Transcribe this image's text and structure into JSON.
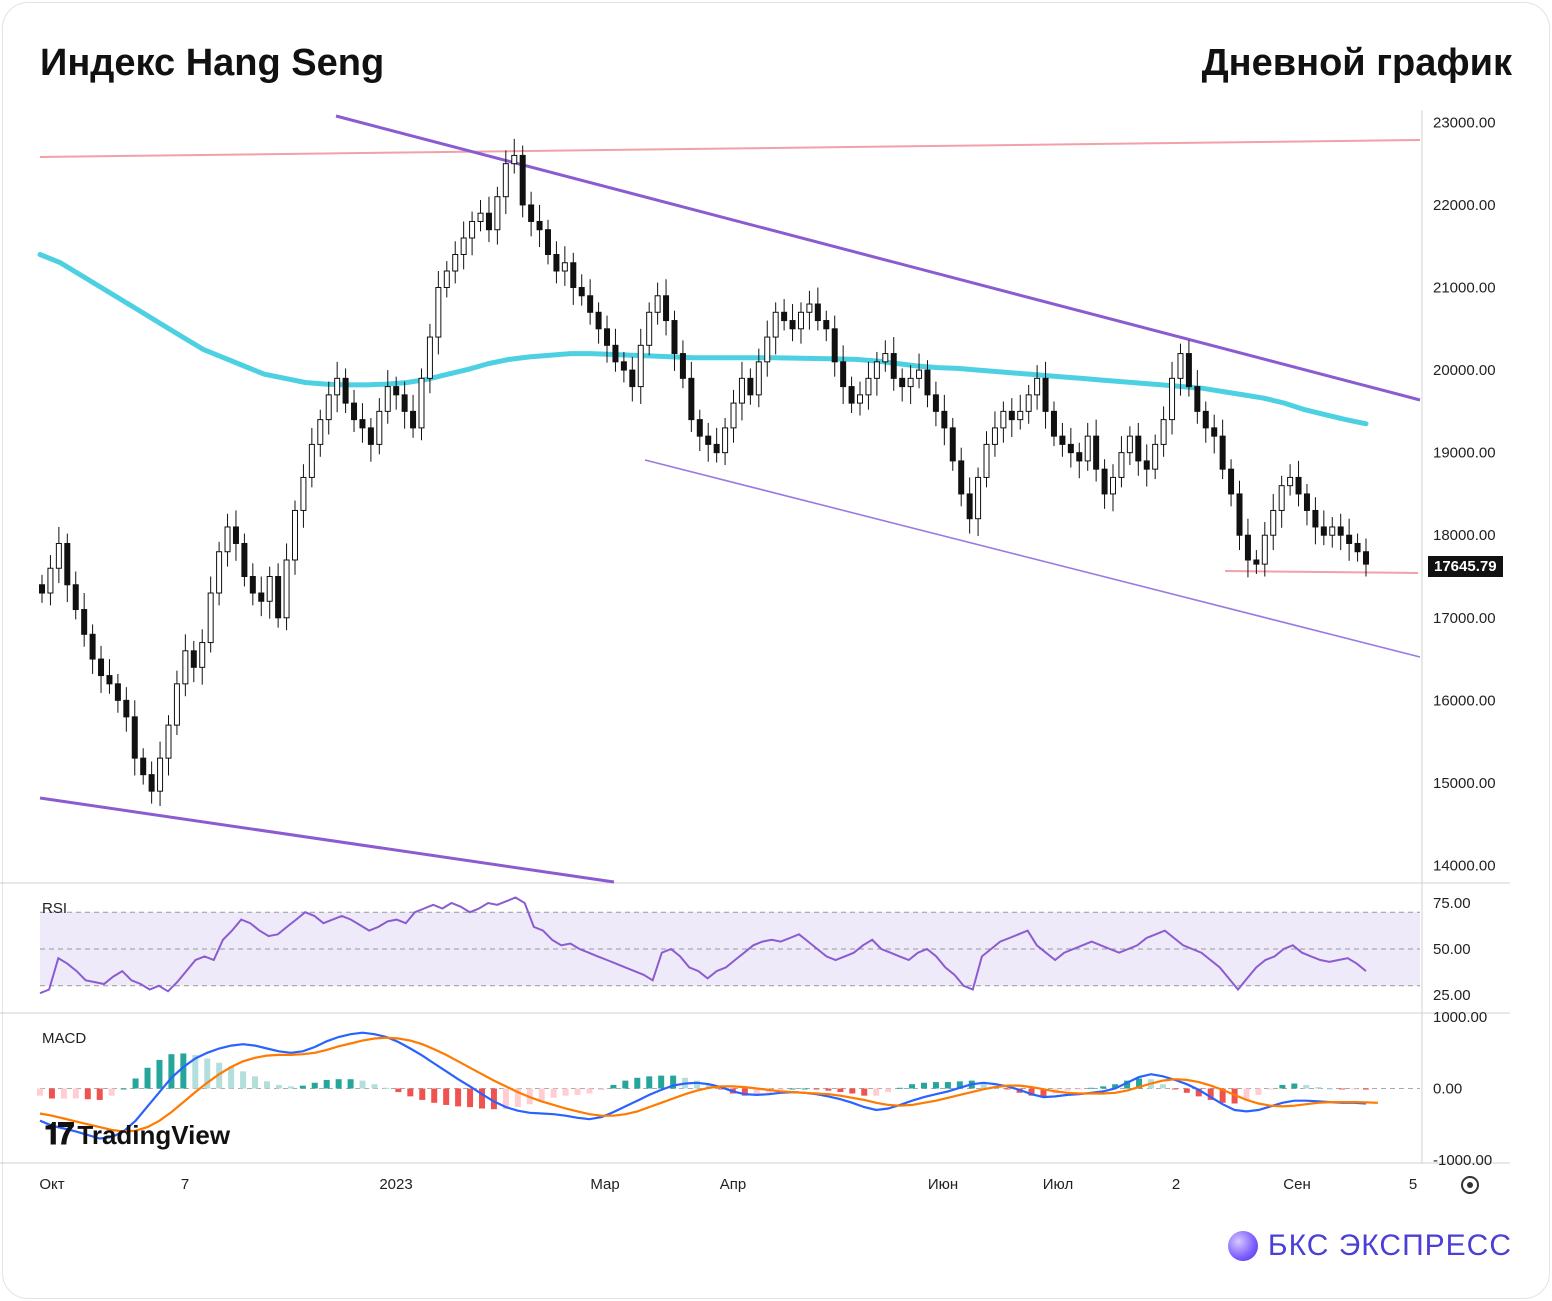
{
  "header": {
    "title": "Индекс Hang Seng",
    "timeframe": "Дневной график"
  },
  "chart_data": {
    "type": "candlestick",
    "title": "Индекс Hang Seng",
    "subtitle": "Дневной график",
    "last_price": "17645.79",
    "y_ticks": [
      "23000.00",
      "22000.00",
      "21000.00",
      "20000.00",
      "19000.00",
      "18000.00",
      "17000.00",
      "16000.00",
      "15000.00",
      "14000.00"
    ],
    "ylim": [
      13800,
      23150
    ],
    "x_ticks": [
      "Окт",
      "7",
      "2023",
      "Мар",
      "Апр",
      "Июн",
      "Июл",
      "2",
      "Сен",
      "5"
    ],
    "close_series": [
      17300,
      17600,
      17900,
      17400,
      17100,
      16800,
      16500,
      16300,
      16200,
      16000,
      15800,
      15300,
      15100,
      14900,
      15300,
      15700,
      16200,
      16600,
      16400,
      16700,
      17300,
      17800,
      18100,
      17900,
      17500,
      17300,
      17200,
      17500,
      17000,
      17700,
      18300,
      18700,
      19100,
      19400,
      19700,
      19900,
      19600,
      19400,
      19300,
      19100,
      19500,
      19800,
      19700,
      19500,
      19300,
      19900,
      20400,
      21000,
      21200,
      21400,
      21600,
      21800,
      21900,
      21700,
      22100,
      22500,
      22600,
      22000,
      21800,
      21700,
      21400,
      21200,
      21300,
      21000,
      20900,
      20700,
      20500,
      20300,
      20100,
      20000,
      19800,
      20300,
      20700,
      20900,
      20600,
      20200,
      19900,
      19400,
      19200,
      19100,
      19000,
      19300,
      19600,
      19900,
      19700,
      20100,
      20400,
      20700,
      20600,
      20500,
      20700,
      20800,
      20600,
      20500,
      20100,
      19800,
      19600,
      19700,
      19900,
      20100,
      20200,
      19900,
      19800,
      19900,
      20000,
      19700,
      19500,
      19300,
      18900,
      18500,
      18200,
      18700,
      19100,
      19300,
      19500,
      19400,
      19500,
      19700,
      19900,
      19500,
      19200,
      19100,
      19000,
      18900,
      19200,
      18800,
      18500,
      18700,
      19000,
      19200,
      18900,
      18800,
      19100,
      19400,
      19900,
      20200,
      19800,
      19500,
      19300,
      19200,
      18800,
      18500,
      18000,
      17700,
      17650,
      18000,
      18300,
      18600,
      18700,
      18500,
      18300,
      18100,
      18000,
      18100,
      18000,
      17900,
      17800,
      17650
    ],
    "ma200": [
      21400,
      21300,
      21150,
      21000,
      20850,
      20700,
      20550,
      20400,
      20250,
      20150,
      20050,
      19950,
      19900,
      19850,
      19830,
      19820,
      19820,
      19830,
      19850,
      19890,
      19950,
      20010,
      20080,
      20130,
      20160,
      20180,
      20200,
      20200,
      20190,
      20180,
      20170,
      20160,
      20150,
      20150,
      20150,
      20150,
      20150,
      20145,
      20140,
      20135,
      20130,
      20110,
      20080,
      20050,
      20030,
      20020,
      20000,
      19980,
      19960,
      19940,
      19920,
      19900,
      19880,
      19860,
      19840,
      19820,
      19800,
      19780,
      19740,
      19700,
      19660,
      19600,
      19520,
      19460,
      19400,
      19350
    ],
    "rsi": {
      "label": "RSI",
      "ticks": [
        "75.00",
        "50.00",
        "25.00"
      ],
      "band": [
        30,
        70
      ],
      "values": [
        26,
        28,
        45,
        42,
        38,
        33,
        32,
        31,
        35,
        38,
        33,
        31,
        28,
        30,
        27,
        32,
        38,
        44,
        46,
        44,
        55,
        60,
        66,
        64,
        60,
        57,
        58,
        62,
        66,
        70,
        68,
        64,
        66,
        68,
        66,
        63,
        60,
        62,
        65,
        66,
        64,
        70,
        72,
        74,
        72,
        75,
        73,
        70,
        72,
        75,
        74,
        76,
        78,
        75,
        62,
        60,
        55,
        52,
        53,
        50,
        48,
        46,
        44,
        42,
        40,
        38,
        36,
        33,
        48,
        50,
        46,
        40,
        38,
        34,
        38,
        40,
        44,
        48,
        52,
        54,
        55,
        54,
        56,
        58,
        54,
        50,
        46,
        44,
        46,
        48,
        52,
        55,
        50,
        48,
        46,
        44,
        48,
        50,
        46,
        40,
        36,
        30,
        28,
        46,
        50,
        54,
        56,
        58,
        60,
        52,
        48,
        44,
        48,
        50,
        52,
        54,
        52,
        50,
        48,
        50,
        52,
        56,
        58,
        60,
        56,
        52,
        50,
        48,
        44,
        40,
        34,
        28,
        34,
        40,
        44,
        46,
        50,
        52,
        48,
        46,
        44,
        43,
        44,
        45,
        42,
        38
      ]
    },
    "macd": {
      "label": "MACD",
      "ticks": [
        "1000.00",
        "0.00",
        "-1000.00"
      ],
      "macd_line": [
        -450,
        -520,
        -560,
        -600,
        -650,
        -700,
        -680,
        -600,
        -450,
        -250,
        -50,
        150,
        300,
        420,
        500,
        560,
        600,
        620,
        600,
        560,
        520,
        500,
        520,
        580,
        660,
        720,
        760,
        780,
        760,
        720,
        650,
        560,
        460,
        350,
        240,
        130,
        30,
        -80,
        -180,
        -260,
        -310,
        -340,
        -350,
        -360,
        -380,
        -410,
        -430,
        -400,
        -330,
        -250,
        -170,
        -90,
        -20,
        40,
        70,
        80,
        60,
        20,
        -40,
        -80,
        -90,
        -80,
        -60,
        -50,
        -60,
        -80,
        -110,
        -150,
        -200,
        -260,
        -300,
        -280,
        -230,
        -170,
        -120,
        -80,
        -40,
        10,
        60,
        80,
        60,
        30,
        -20,
        -80,
        -120,
        -110,
        -90,
        -80,
        -60,
        -40,
        0,
        80,
        160,
        200,
        170,
        120,
        60,
        -20,
        -120,
        -220,
        -300,
        -320,
        -300,
        -250,
        -200,
        -170,
        -170,
        -180,
        -190,
        -200,
        -200,
        -210
      ],
      "signal_line": [
        -350,
        -380,
        -420,
        -460,
        -500,
        -540,
        -580,
        -600,
        -590,
        -540,
        -450,
        -330,
        -190,
        -50,
        80,
        200,
        300,
        380,
        430,
        460,
        470,
        470,
        480,
        500,
        540,
        590,
        630,
        670,
        700,
        710,
        700,
        670,
        620,
        550,
        470,
        380,
        290,
        200,
        110,
        30,
        -50,
        -120,
        -180,
        -230,
        -280,
        -320,
        -360,
        -380,
        -380,
        -360,
        -320,
        -260,
        -200,
        -140,
        -80,
        -30,
        10,
        30,
        30,
        20,
        0,
        -20,
        -40,
        -50,
        -60,
        -70,
        -80,
        -100,
        -130,
        -160,
        -200,
        -230,
        -240,
        -230,
        -200,
        -170,
        -130,
        -90,
        -50,
        -10,
        20,
        40,
        40,
        20,
        -10,
        -40,
        -60,
        -70,
        -70,
        -70,
        -60,
        -30,
        20,
        70,
        110,
        130,
        120,
        90,
        40,
        -20,
        -90,
        -160,
        -210,
        -240,
        -250,
        -240,
        -220,
        -200,
        -190,
        -190,
        -190,
        -195,
        -200
      ]
    }
  },
  "footer": {
    "tradingview": "TradingView",
    "brand": "БКС ЭКСПРЕСС"
  }
}
